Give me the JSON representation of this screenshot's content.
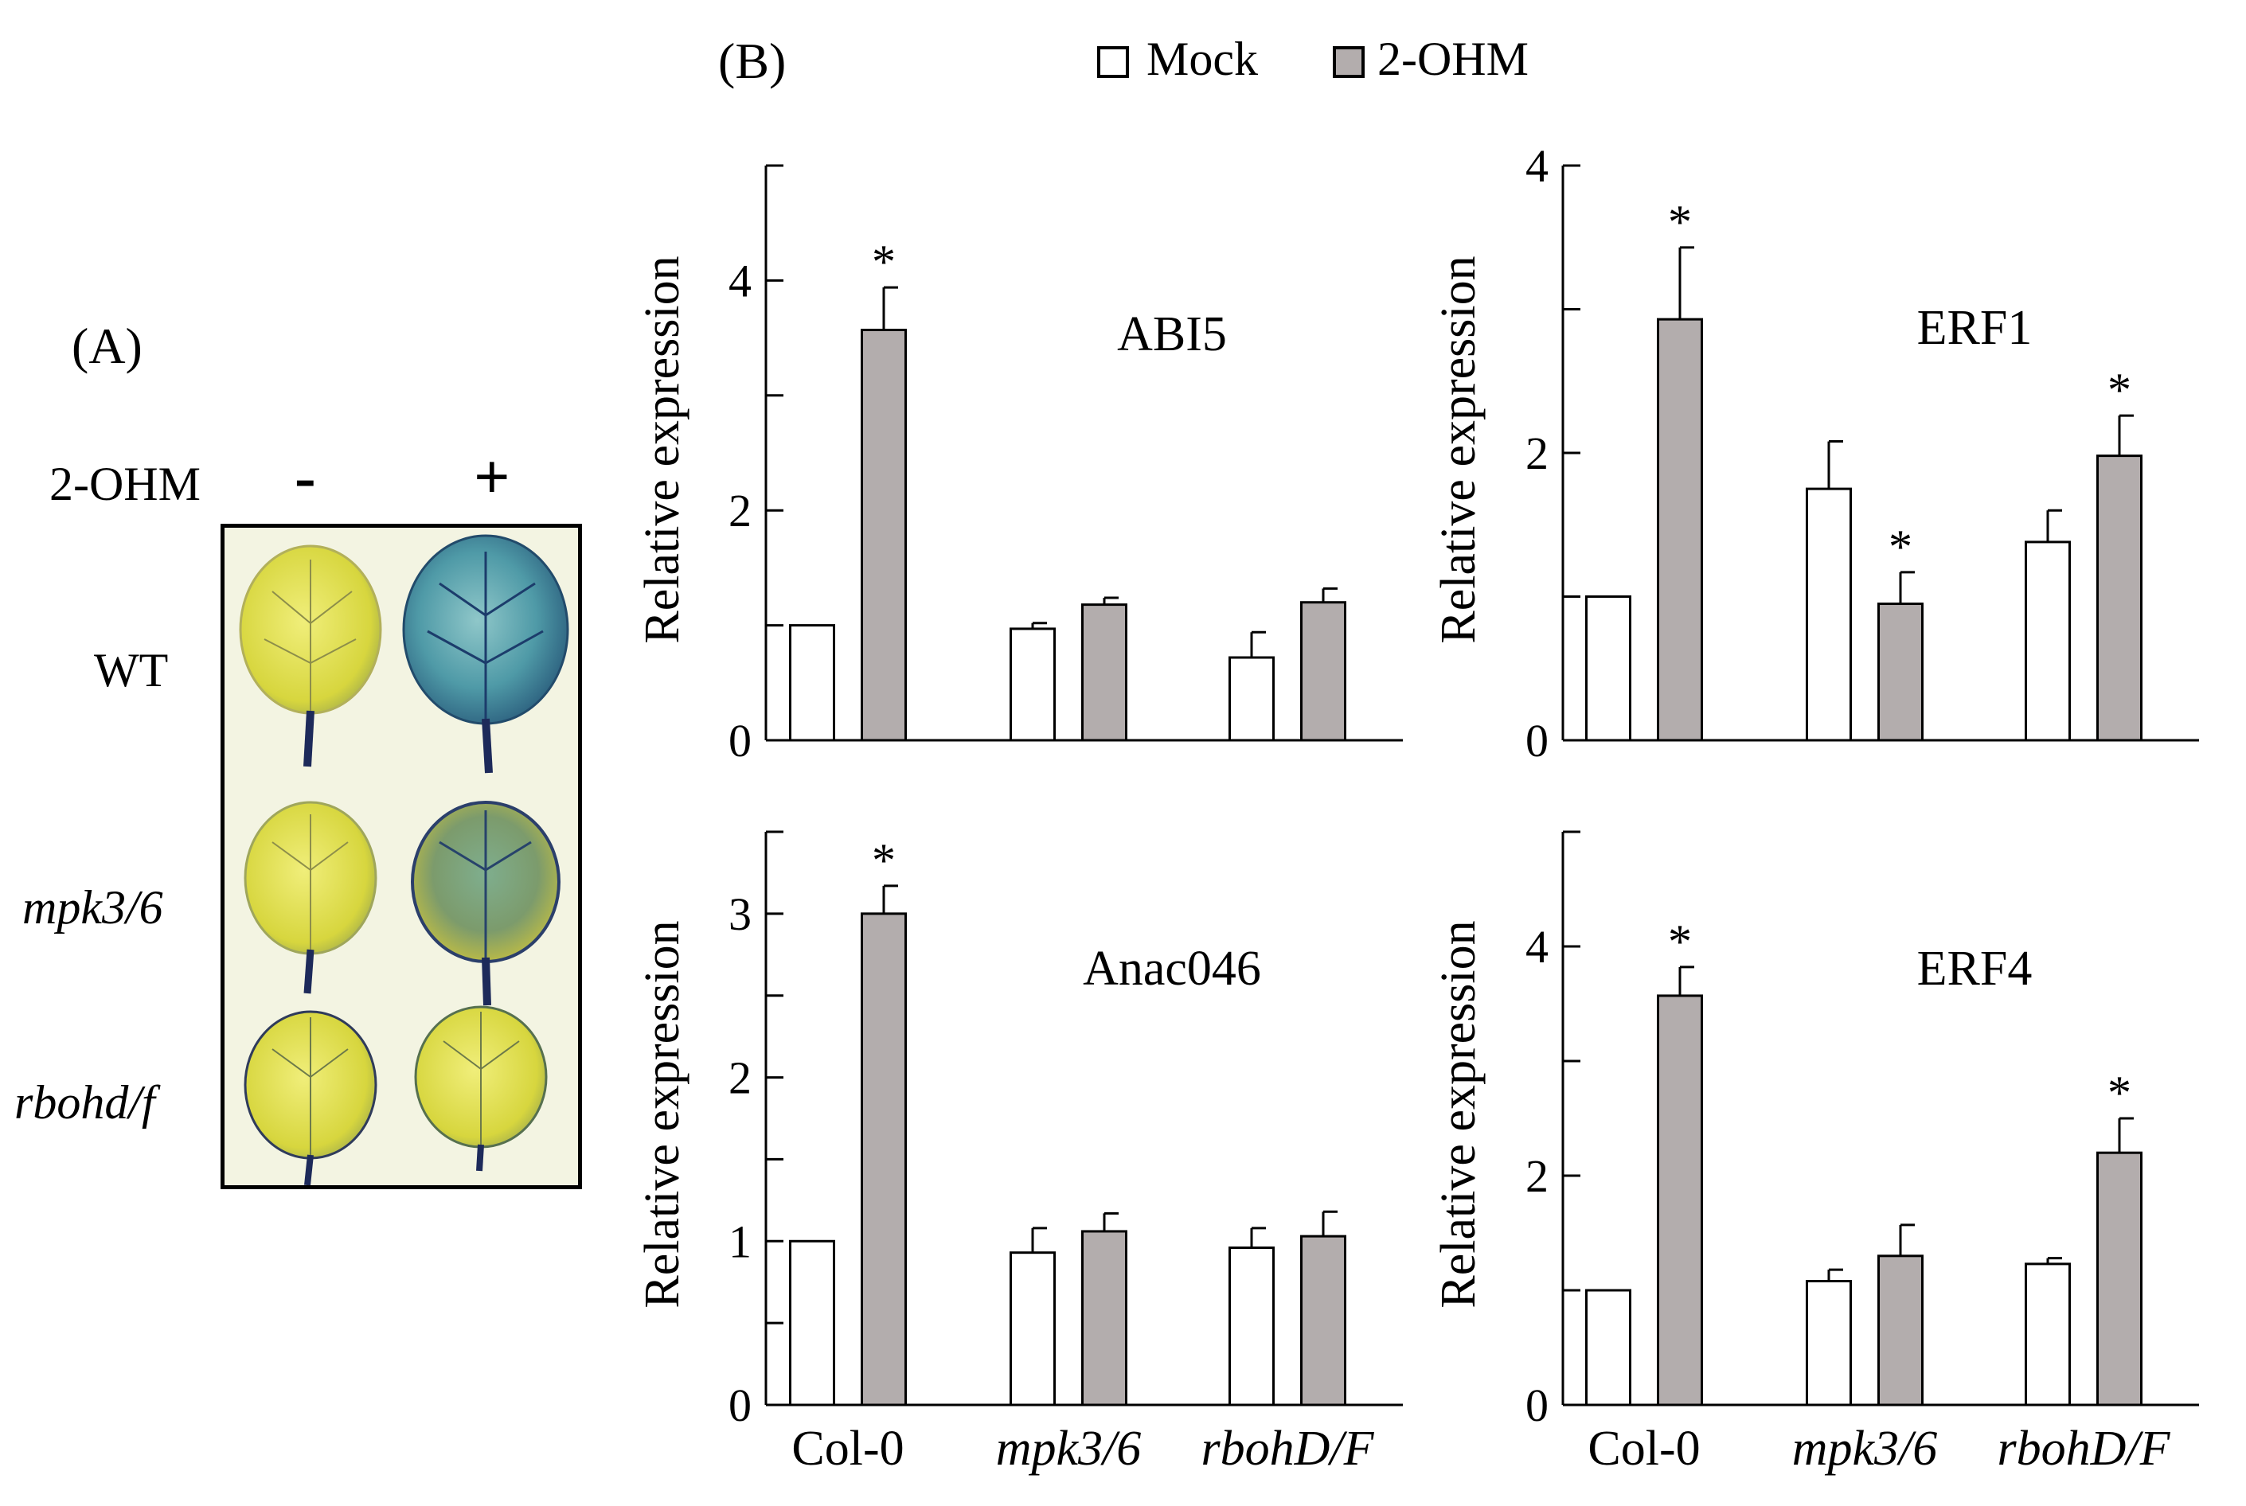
{
  "panelA": {
    "label": "(A)",
    "treatment_label": "2-OHM",
    "minus": "-",
    "plus": "+",
    "rows": [
      "WT",
      "mpk3/6",
      "rbohd/f"
    ]
  },
  "panelB": {
    "label": "(B)",
    "legend": {
      "mock": "Mock",
      "treated": "2-OHM",
      "mock_color": "#ffffff",
      "treated_color": "#b3adad"
    }
  },
  "chart_data": [
    {
      "type": "bar",
      "title": "ABI5",
      "xlabel": "",
      "ylabel": "Relative expression",
      "categories": [
        "Col-0",
        "mpk3/6",
        "rbohD/F"
      ],
      "ylim": [
        0,
        5
      ],
      "yticks": [
        0,
        2,
        4
      ],
      "minor_step": 1,
      "show_xlabels": false,
      "series": [
        {
          "name": "Mock",
          "values": [
            1.0,
            0.97,
            0.72
          ],
          "errors": [
            0,
            0.05,
            0.22
          ],
          "stars": [
            false,
            false,
            false
          ]
        },
        {
          "name": "2-OHM",
          "values": [
            3.57,
            1.18,
            1.2
          ],
          "errors": [
            0.37,
            0.06,
            0.12
          ],
          "stars": [
            true,
            false,
            false
          ]
        }
      ]
    },
    {
      "type": "bar",
      "title": "ERF1",
      "xlabel": "",
      "ylabel": "Relative expression",
      "categories": [
        "Col-0",
        "mpk3/6",
        "rbohD/F"
      ],
      "ylim": [
        0,
        4
      ],
      "yticks": [
        0,
        2,
        4
      ],
      "minor_step": 1,
      "show_xlabels": false,
      "series": [
        {
          "name": "Mock",
          "values": [
            1.0,
            1.75,
            1.38
          ],
          "errors": [
            0,
            0.33,
            0.22
          ],
          "stars": [
            false,
            false,
            false
          ]
        },
        {
          "name": "2-OHM",
          "values": [
            2.93,
            0.95,
            1.98
          ],
          "errors": [
            0.5,
            0.22,
            0.28
          ],
          "stars": [
            true,
            true,
            true
          ]
        }
      ]
    },
    {
      "type": "bar",
      "title": "Anac046",
      "xlabel": "",
      "ylabel": "Relative expression",
      "categories": [
        "Col-0",
        "mpk3/6",
        "rbohD/F"
      ],
      "ylim": [
        0,
        3.5
      ],
      "yticks": [
        0,
        1,
        2,
        3
      ],
      "minor_step": 0.5,
      "show_xlabels": true,
      "series": [
        {
          "name": "Mock",
          "values": [
            1.0,
            0.93,
            0.96
          ],
          "errors": [
            0,
            0.15,
            0.12
          ],
          "stars": [
            false,
            false,
            false
          ]
        },
        {
          "name": "2-OHM",
          "values": [
            3.0,
            1.06,
            1.03
          ],
          "errors": [
            0.17,
            0.11,
            0.15
          ],
          "stars": [
            true,
            false,
            false
          ]
        }
      ]
    },
    {
      "type": "bar",
      "title": "ERF4",
      "xlabel": "",
      "ylabel": "Relative expression",
      "categories": [
        "Col-0",
        "mpk3/6",
        "rbohD/F"
      ],
      "ylim": [
        0,
        5
      ],
      "yticks": [
        0,
        2,
        4
      ],
      "minor_step": 1,
      "show_xlabels": true,
      "series": [
        {
          "name": "Mock",
          "values": [
            1.0,
            1.08,
            1.23
          ],
          "errors": [
            0,
            0.1,
            0.05
          ],
          "stars": [
            false,
            false,
            false
          ]
        },
        {
          "name": "2-OHM",
          "values": [
            3.57,
            1.3,
            2.2
          ],
          "errors": [
            0.25,
            0.27,
            0.3
          ],
          "stars": [
            true,
            false,
            true
          ]
        }
      ]
    }
  ]
}
